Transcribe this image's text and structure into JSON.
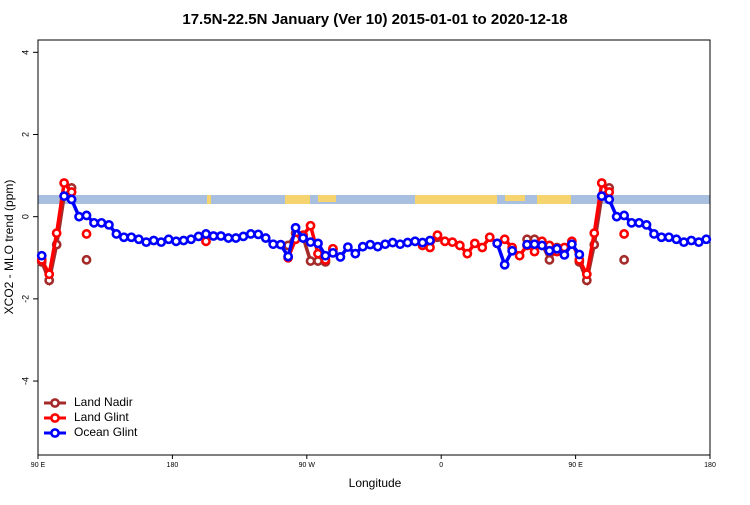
{
  "chart_data": {
    "type": "line",
    "title": "17.5N-22.5N January (Ver 10)   2015-01-01 to 2020-12-18",
    "x_label": "Longitude",
    "y_label": "XCO2 - MLO trend (ppm)",
    "x": [
      92.5,
      97.5,
      102.5,
      107.5,
      112.5,
      117.5,
      122.5,
      127.5,
      132.5,
      137.5,
      142.5,
      147.5,
      152.5,
      157.5,
      162.5,
      167.5,
      172.5,
      177.5,
      182.5,
      187.5,
      192.5,
      197.5,
      202.5,
      207.5,
      212.5,
      217.5,
      222.5,
      227.5,
      232.5,
      237.5,
      242.5,
      247.5,
      252.5,
      257.5,
      262.5,
      267.5,
      272.5,
      277.5,
      282.5,
      287.5,
      292.5,
      297.5,
      302.5,
      307.5,
      312.5,
      317.5,
      322.5,
      327.5,
      332.5,
      337.5,
      342.5,
      347.5,
      352.5,
      357.5,
      362.5,
      367.5,
      372.5,
      377.5,
      382.5,
      387.5,
      392.5,
      397.5,
      402.5,
      407.5,
      412.5,
      417.5,
      422.5,
      427.5,
      432.5,
      437.5,
      442.5,
      447.5,
      452.5,
      457.5,
      462.5,
      467.5,
      472.5,
      477.5,
      482.5,
      487.5,
      492.5,
      497.5,
      502.5,
      507.5,
      512.5,
      517.5,
      522.5,
      527.5,
      532.5,
      537.5
    ],
    "series": [
      {
        "name": "Land Nadir",
        "color": "#a52a2a",
        "values": [
          -1.1,
          -1.55,
          -0.68,
          0.5,
          0.7,
          null,
          -1.05,
          null,
          null,
          null,
          null,
          null,
          null,
          null,
          null,
          null,
          null,
          null,
          null,
          null,
          null,
          null,
          null,
          null,
          null,
          null,
          null,
          null,
          null,
          null,
          null,
          null,
          null,
          -0.7,
          -0.4,
          -0.5,
          -1.08,
          -1.08,
          -1.1,
          -0.8,
          null,
          null,
          null,
          null,
          null,
          null,
          null,
          null,
          null,
          null,
          null,
          null,
          null,
          -0.5,
          null,
          null,
          null,
          null,
          null,
          null,
          null,
          null,
          null,
          null,
          null,
          -0.55,
          -0.55,
          -0.65,
          -1.05,
          -0.75,
          null,
          null,
          -1.1,
          -1.55,
          -0.68,
          0.5,
          0.7,
          null,
          -1.05,
          null,
          null,
          null,
          null,
          null,
          null,
          null,
          null,
          null,
          null,
          null
        ]
      },
      {
        "name": "Land Glint",
        "color": "#ff0000",
        "values": [
          -1.05,
          -1.4,
          -0.4,
          0.82,
          0.6,
          null,
          -0.42,
          null,
          null,
          null,
          null,
          null,
          null,
          null,
          null,
          null,
          null,
          null,
          null,
          null,
          null,
          null,
          -0.6,
          null,
          null,
          null,
          null,
          null,
          null,
          null,
          null,
          null,
          null,
          -1.0,
          -0.55,
          -0.45,
          -0.22,
          -0.9,
          -1.05,
          -0.78,
          null,
          null,
          null,
          null,
          null,
          null,
          null,
          null,
          null,
          null,
          null,
          -0.7,
          -0.75,
          -0.45,
          -0.6,
          -0.62,
          -0.7,
          -0.9,
          -0.65,
          -0.75,
          -0.5,
          -0.65,
          -0.55,
          -0.75,
          -0.95,
          -0.7,
          -0.85,
          -0.6,
          -0.7,
          -0.85,
          -0.75,
          -0.6,
          -1.05,
          -1.4,
          -0.4,
          0.82,
          0.6,
          null,
          -0.42,
          null,
          null,
          null,
          null,
          null,
          null,
          null,
          null,
          null,
          null,
          null
        ]
      },
      {
        "name": "Ocean Glint",
        "color": "#0000ff",
        "values": [
          -0.95,
          null,
          null,
          0.5,
          0.42,
          0,
          0.03,
          -0.15,
          -0.15,
          -0.2,
          -0.42,
          -0.5,
          -0.5,
          -0.55,
          -0.62,
          -0.58,
          -0.62,
          -0.55,
          -0.6,
          -0.58,
          -0.55,
          -0.48,
          -0.42,
          -0.47,
          -0.47,
          -0.52,
          -0.52,
          -0.48,
          -0.42,
          -0.43,
          -0.52,
          -0.67,
          -0.68,
          -0.97,
          -0.27,
          -0.52,
          -0.62,
          -0.65,
          -0.95,
          -0.88,
          -0.98,
          -0.74,
          -0.9,
          -0.73,
          -0.68,
          -0.73,
          -0.67,
          -0.63,
          -0.67,
          -0.63,
          -0.6,
          -0.63,
          -0.58,
          null,
          null,
          null,
          null,
          null,
          null,
          null,
          null,
          -0.65,
          -1.17,
          -0.83,
          null,
          -0.68,
          -0.67,
          -0.7,
          -0.83,
          -0.78,
          -0.93,
          -0.67,
          -0.92,
          null,
          null,
          0.5,
          0.42,
          0,
          0.03,
          -0.15,
          -0.15,
          -0.2,
          -0.42,
          -0.5,
          -0.5,
          -0.55,
          -0.62,
          -0.58,
          -0.62,
          -0.55
        ]
      }
    ],
    "xlim": [
      90,
      540
    ],
    "xticks": [
      {
        "value": 90,
        "label": "90 E"
      },
      180,
      {
        "value": 270,
        "label": "90 W"
      },
      {
        "value": 360,
        "label": "0"
      },
      {
        "value": 450,
        "label": "90 E"
      },
      {
        "value": 540,
        "label": "180"
      }
    ],
    "ylim": [
      -5.8,
      4.3
    ],
    "yticks": [
      -4,
      -2,
      0,
      2,
      4
    ],
    "legend": "bottom-left"
  }
}
